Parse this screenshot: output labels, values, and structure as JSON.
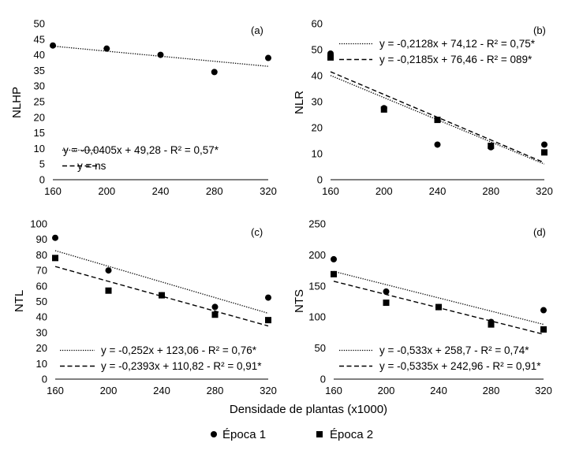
{
  "xlabel": "Densidade de plantas (x1000)",
  "legend": [
    {
      "marker": "circle",
      "label": "Época 1"
    },
    {
      "marker": "square",
      "label": "Época 2"
    }
  ],
  "colors": {
    "marks": "#000000",
    "axis": "#000000"
  },
  "chart_data": [
    {
      "type": "scatter",
      "panel": "(a)",
      "ylabel": "NLHP",
      "xticks": [
        160,
        200,
        240,
        280,
        320
      ],
      "xlim": [
        160,
        320
      ],
      "ylim": [
        0,
        50
      ],
      "yticks": [
        0,
        5,
        10,
        15,
        20,
        25,
        30,
        35,
        40,
        45,
        50
      ],
      "series": [
        {
          "name": "Época 1",
          "marker": "circle",
          "x": [
            160,
            200,
            240,
            280,
            320
          ],
          "y": [
            43,
            42,
            40,
            34.5,
            39
          ]
        }
      ],
      "fits": [
        {
          "style": "dotted",
          "label": "y = -0,0405x + 49,28 - R² = 0,57*",
          "slope": -0.0405,
          "intercept": 49.28
        },
        {
          "style": "dashed",
          "label": "y = ns"
        }
      ]
    },
    {
      "type": "scatter",
      "panel": "(b)",
      "ylabel": "NLR",
      "xticks": [
        160,
        200,
        240,
        280,
        320
      ],
      "xlim": [
        160,
        320
      ],
      "ylim": [
        0,
        60
      ],
      "yticks": [
        0,
        10,
        20,
        30,
        40,
        50,
        60
      ],
      "series": [
        {
          "name": "Época 1",
          "marker": "circle",
          "x": [
            160,
            200,
            240,
            280,
            320
          ],
          "y": [
            48.5,
            27.5,
            13.5,
            12.5,
            13.5
          ]
        },
        {
          "name": "Época 2",
          "marker": "square",
          "x": [
            160,
            200,
            240,
            280,
            320
          ],
          "y": [
            47,
            27,
            23,
            13,
            10.5
          ]
        }
      ],
      "fits": [
        {
          "style": "dotted",
          "label": "y = -0,2128x + 74,12 - R² = 0,75*",
          "slope": -0.2128,
          "intercept": 74.12
        },
        {
          "style": "dashed",
          "label": "y = -0,2185x + 76,46 - R² = 089*",
          "slope": -0.2185,
          "intercept": 76.46
        }
      ]
    },
    {
      "type": "scatter",
      "panel": "(c)",
      "ylabel": "NTL",
      "xticks": [
        160,
        200,
        240,
        280,
        320
      ],
      "xlim": [
        160,
        320
      ],
      "ylim": [
        0,
        100
      ],
      "yticks": [
        0,
        10,
        20,
        30,
        40,
        50,
        60,
        70,
        80,
        90,
        100
      ],
      "series": [
        {
          "name": "Época 1",
          "marker": "circle",
          "x": [
            160,
            200,
            240,
            280,
            320
          ],
          "y": [
            91,
            70,
            54,
            46.5,
            52.5
          ]
        },
        {
          "name": "Época 2",
          "marker": "square",
          "x": [
            160,
            200,
            240,
            280,
            320
          ],
          "y": [
            78,
            57,
            54,
            41.5,
            38
          ]
        }
      ],
      "fits": [
        {
          "style": "dotted",
          "label": "y = -0,252x + 123,06 - R² = 0,76*",
          "slope": -0.252,
          "intercept": 123.06
        },
        {
          "style": "dashed",
          "label": "y = -0,2393x + 110,82 - R² = 0,91*",
          "slope": -0.2393,
          "intercept": 110.82
        }
      ]
    },
    {
      "type": "scatter",
      "panel": "(d)",
      "ylabel": "NTS",
      "xticks": [
        160,
        200,
        240,
        280,
        320
      ],
      "xlim": [
        160,
        320
      ],
      "ylim": [
        0,
        250
      ],
      "yticks": [
        0,
        50,
        100,
        150,
        200,
        250
      ],
      "series": [
        {
          "name": "Época 1",
          "marker": "circle",
          "x": [
            160,
            200,
            240,
            280,
            320
          ],
          "y": [
            193,
            141,
            116,
            92,
            111
          ]
        },
        {
          "name": "Época 2",
          "marker": "square",
          "x": [
            160,
            200,
            240,
            280,
            320
          ],
          "y": [
            169,
            123,
            116,
            88,
            80
          ]
        }
      ],
      "fits": [
        {
          "style": "dotted",
          "label": "y = -0,533x + 258,7 - R² = 0,74*",
          "slope": -0.533,
          "intercept": 258.7
        },
        {
          "style": "dashed",
          "label": "y = -0,5335x + 242,96 - R² = 0,91*",
          "slope": -0.5335,
          "intercept": 242.96
        }
      ]
    }
  ]
}
